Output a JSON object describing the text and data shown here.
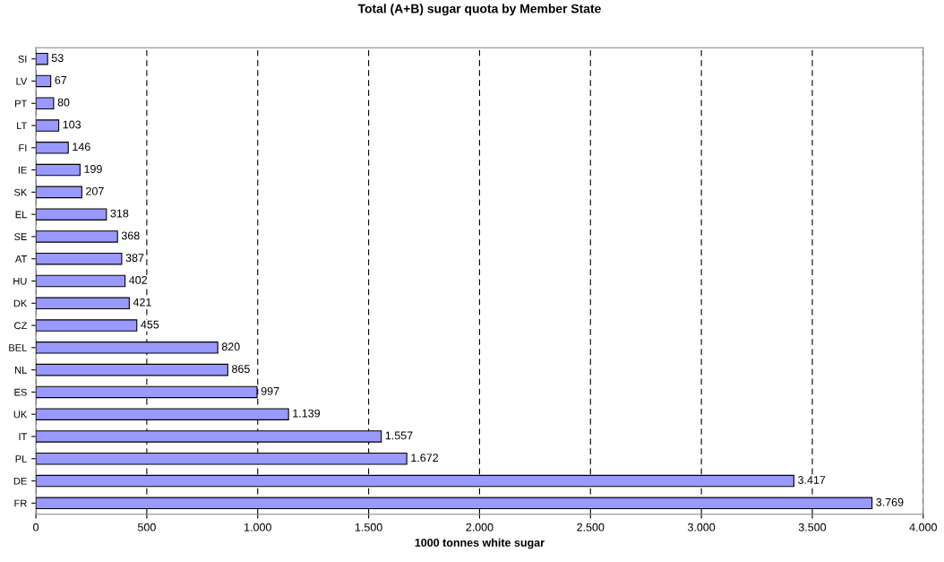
{
  "chart_data": {
    "type": "bar",
    "orientation": "horizontal",
    "title": "Total (A+B) sugar quota by Member State",
    "xlabel": "1000 tonnes white sugar",
    "categories": [
      "SI",
      "LV",
      "PT",
      "LT",
      "FI",
      "IE",
      "SK",
      "EL",
      "SE",
      "AT",
      "HU",
      "DK",
      "CZ",
      "BEL",
      "NL",
      "ES",
      "UK",
      "IT",
      "PL",
      "DE",
      "FR"
    ],
    "values": [
      53,
      67,
      80,
      103,
      146,
      199,
      207,
      318,
      368,
      387,
      402,
      421,
      455,
      820,
      865,
      997,
      1139,
      1557,
      1672,
      3417,
      3769
    ],
    "value_labels": [
      "53",
      "67",
      "80",
      "103",
      "146",
      "199",
      "207",
      "318",
      "368",
      "387",
      "402",
      "421",
      "455",
      "820",
      "865",
      "997",
      "1.139",
      "1.557",
      "1.672",
      "3.417",
      "3.769"
    ],
    "color": "#9999ff",
    "xlim": [
      0,
      4000
    ],
    "xticks": [
      0,
      500,
      {
        "value": 1000,
        "label": "1.000"
      },
      {
        "value": 1500,
        "label": "1.500"
      },
      {
        "value": 2000,
        "label": "2.000"
      },
      {
        "value": 2500,
        "label": "2.500"
      },
      {
        "value": 3000,
        "label": "3.000"
      },
      {
        "value": 3500,
        "label": "3.500"
      },
      {
        "value": 4000,
        "label": "4.000"
      }
    ],
    "grid": "x",
    "line_style": "dashed"
  }
}
